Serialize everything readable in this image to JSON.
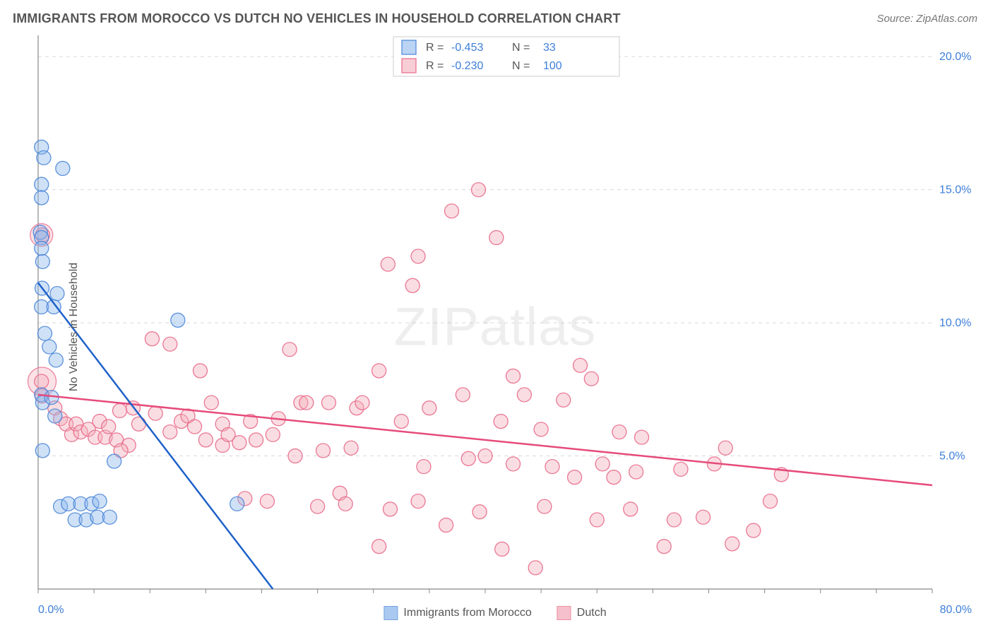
{
  "title": "IMMIGRANTS FROM MOROCCO VS DUTCH NO VEHICLES IN HOUSEHOLD CORRELATION CHART",
  "source_label": "Source: ZipAtlas.com",
  "y_axis_label": "No Vehicles in Household",
  "watermark": {
    "bold": "ZIP",
    "rest": "atlas"
  },
  "colors": {
    "grid": "#d9d9d9",
    "axis": "#888888",
    "tick_text": "#3d7fd9",
    "title_text": "#555555",
    "series_a_fill": "#8db7ec",
    "series_a_stroke": "#4a86d8",
    "series_a_line": "#1f62c9",
    "series_b_fill": "#f4adbb",
    "series_b_stroke": "#e86a89",
    "series_b_line": "#e64b7b",
    "legend_value": "#3d7fd9",
    "legend_box_border": "#cccccc",
    "legend_box_bg": "#ffffff"
  },
  "plot": {
    "x_domain": [
      0,
      80
    ],
    "y_domain": [
      0,
      20.8
    ],
    "x_ticks": [
      0,
      80
    ],
    "x_tick_labels": [
      "0.0%",
      "80.0%"
    ],
    "y_ticks": [
      5,
      10,
      15,
      20
    ],
    "y_tick_labels": [
      "5.0%",
      "10.0%",
      "15.0%",
      "20.0%"
    ],
    "y_grid": [
      5,
      10,
      15,
      20
    ],
    "marker_radius": 10,
    "marker_opacity": 0.42,
    "line_width": 2.5
  },
  "legend_stats": {
    "rows": [
      {
        "swatch": "a",
        "r_label": "R =",
        "r_value": "-0.453",
        "n_label": "N =",
        "n_value": "33"
      },
      {
        "swatch": "b",
        "r_label": "R =",
        "r_value": "-0.230",
        "n_label": "N =",
        "n_value": "100"
      }
    ]
  },
  "bottom_legend": [
    {
      "swatch": "a",
      "label": "Immigrants from Morocco"
    },
    {
      "swatch": "b",
      "label": "Dutch"
    }
  ],
  "series_a": {
    "name": "Immigrants from Morocco",
    "trend": {
      "x1": 0,
      "y1": 11.5,
      "x2": 21,
      "y2": 0
    },
    "points": [
      [
        0.3,
        16.6
      ],
      [
        0.5,
        16.2
      ],
      [
        2.2,
        15.8
      ],
      [
        0.3,
        15.2
      ],
      [
        0.3,
        14.7
      ],
      [
        0.2,
        13.4
      ],
      [
        0.3,
        13.2
      ],
      [
        0.3,
        12.8
      ],
      [
        0.4,
        12.3
      ],
      [
        0.35,
        11.3
      ],
      [
        1.7,
        11.1
      ],
      [
        0.3,
        10.6
      ],
      [
        1.4,
        10.6
      ],
      [
        0.6,
        9.6
      ],
      [
        1.0,
        9.1
      ],
      [
        1.6,
        8.6
      ],
      [
        12.5,
        10.1
      ],
      [
        0.3,
        7.3
      ],
      [
        1.5,
        6.5
      ],
      [
        0.4,
        5.2
      ],
      [
        6.8,
        4.8
      ],
      [
        2.0,
        3.1
      ],
      [
        2.7,
        3.2
      ],
      [
        3.8,
        3.2
      ],
      [
        4.8,
        3.2
      ],
      [
        5.5,
        3.3
      ],
      [
        17.8,
        3.2
      ],
      [
        3.3,
        2.6
      ],
      [
        4.3,
        2.6
      ],
      [
        5.3,
        2.7
      ],
      [
        6.4,
        2.7
      ],
      [
        0.4,
        7.0
      ],
      [
        1.2,
        7.2
      ]
    ]
  },
  "series_b": {
    "name": "Dutch",
    "trend": {
      "x1": 0,
      "y1": 7.3,
      "x2": 80,
      "y2": 3.9
    },
    "points": [
      [
        0.4,
        13.3
      ],
      [
        0.3,
        7.8
      ],
      [
        1.5,
        6.8
      ],
      [
        2.0,
        6.4
      ],
      [
        2.5,
        6.2
      ],
      [
        3.0,
        5.8
      ],
      [
        3.4,
        6.2
      ],
      [
        3.8,
        5.9
      ],
      [
        4.5,
        6.0
      ],
      [
        5.1,
        5.7
      ],
      [
        5.5,
        6.3
      ],
      [
        6.0,
        5.7
      ],
      [
        6.3,
        6.1
      ],
      [
        7.0,
        5.6
      ],
      [
        7.3,
        6.7
      ],
      [
        8.1,
        5.4
      ],
      [
        8.5,
        6.8
      ],
      [
        9.0,
        6.2
      ],
      [
        10.2,
        9.4
      ],
      [
        10.5,
        6.6
      ],
      [
        11.8,
        5.9
      ],
      [
        11.8,
        9.2
      ],
      [
        12.8,
        6.3
      ],
      [
        13.4,
        6.5
      ],
      [
        14.0,
        6.1
      ],
      [
        14.5,
        8.2
      ],
      [
        15.0,
        5.6
      ],
      [
        15.5,
        7.0
      ],
      [
        16.5,
        5.4
      ],
      [
        16.5,
        6.2
      ],
      [
        17.0,
        5.8
      ],
      [
        18.0,
        5.5
      ],
      [
        18.5,
        3.4
      ],
      [
        19.0,
        6.3
      ],
      [
        19.5,
        5.6
      ],
      [
        20.5,
        3.3
      ],
      [
        21.0,
        5.8
      ],
      [
        21.5,
        6.4
      ],
      [
        22.5,
        9.0
      ],
      [
        23.0,
        5.0
      ],
      [
        23.5,
        7.0
      ],
      [
        24.0,
        7.0
      ],
      [
        25.0,
        3.1
      ],
      [
        25.5,
        5.2
      ],
      [
        26.0,
        7.0
      ],
      [
        27.0,
        3.6
      ],
      [
        27.5,
        3.2
      ],
      [
        28.0,
        5.3
      ],
      [
        28.5,
        6.8
      ],
      [
        29.0,
        7.0
      ],
      [
        30.5,
        1.6
      ],
      [
        30.5,
        8.2
      ],
      [
        31.3,
        12.2
      ],
      [
        31.5,
        3.0
      ],
      [
        32.5,
        6.3
      ],
      [
        33.5,
        11.4
      ],
      [
        34.0,
        3.3
      ],
      [
        34.0,
        12.5
      ],
      [
        34.5,
        4.6
      ],
      [
        35.0,
        6.8
      ],
      [
        36.5,
        2.4
      ],
      [
        37.0,
        14.2
      ],
      [
        38.0,
        7.3
      ],
      [
        38.5,
        4.9
      ],
      [
        39.4,
        15.0
      ],
      [
        39.5,
        2.9
      ],
      [
        40.0,
        5.0
      ],
      [
        41.0,
        13.2
      ],
      [
        41.4,
        6.3
      ],
      [
        41.5,
        1.5
      ],
      [
        42.5,
        4.7
      ],
      [
        42.5,
        8.0
      ],
      [
        43.5,
        7.3
      ],
      [
        44.5,
        0.8
      ],
      [
        45.0,
        6.0
      ],
      [
        45.3,
        3.1
      ],
      [
        46.0,
        4.6
      ],
      [
        47.0,
        7.1
      ],
      [
        48.0,
        4.2
      ],
      [
        48.5,
        8.4
      ],
      [
        49.5,
        7.9
      ],
      [
        50.0,
        2.6
      ],
      [
        50.5,
        4.7
      ],
      [
        51.5,
        4.2
      ],
      [
        52.0,
        5.9
      ],
      [
        53.0,
        3.0
      ],
      [
        53.5,
        4.4
      ],
      [
        54.0,
        5.7
      ],
      [
        56.0,
        1.6
      ],
      [
        56.9,
        2.6
      ],
      [
        57.5,
        4.5
      ],
      [
        59.5,
        2.7
      ],
      [
        60.5,
        4.7
      ],
      [
        61.5,
        5.3
      ],
      [
        62.1,
        1.7
      ],
      [
        64.0,
        2.2
      ],
      [
        65.5,
        3.3
      ],
      [
        66.5,
        4.3
      ],
      [
        7.4,
        5.2
      ],
      [
        0.35,
        7.25
      ]
    ]
  }
}
